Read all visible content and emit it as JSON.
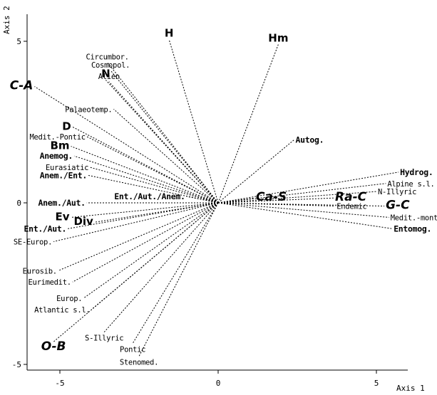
{
  "chart_data": {
    "type": "scatter",
    "title": "",
    "xlabel": "Axis 1",
    "ylabel": "Axis 2",
    "xlim": [
      -6.4,
      6.2
    ],
    "ylim": [
      -5.5,
      5.8
    ],
    "x_ticks": [
      -5,
      0,
      5
    ],
    "y_ticks": [
      -5,
      0,
      5
    ],
    "x_tick_labels": [
      "-5",
      "0",
      "5"
    ],
    "y_tick_labels": [
      "-5",
      "0",
      "5"
    ],
    "grid": false,
    "points": [
      {
        "label": "H",
        "x": -1.55,
        "y": 5.05,
        "style": "l"
      },
      {
        "label": "Hm",
        "x": 1.9,
        "y": 4.9,
        "style": "l"
      },
      {
        "label": "Circumbor.",
        "x": -3.5,
        "y": 4.35,
        "style": "s"
      },
      {
        "label": "Cosmopol.",
        "x": -3.4,
        "y": 4.1,
        "style": "s"
      },
      {
        "label": "Alien",
        "x": -3.45,
        "y": 3.75,
        "style": "s"
      },
      {
        "label": "N",
        "x": -3.55,
        "y": 3.8,
        "style": "l"
      },
      {
        "label": "C-A",
        "x": -5.8,
        "y": 3.6,
        "style": "xl"
      },
      {
        "label": "Palaeotemp.",
        "x": -3.3,
        "y": 2.9,
        "style": "s"
      },
      {
        "label": "D",
        "x": -4.6,
        "y": 2.35,
        "style": "l"
      },
      {
        "label": "Medit.-Pontic",
        "x": -4.15,
        "y": 2.05,
        "style": "s"
      },
      {
        "label": "Bm",
        "x": -4.65,
        "y": 1.75,
        "style": "l"
      },
      {
        "label": "Anemog.",
        "x": -4.55,
        "y": 1.45,
        "style": "m"
      },
      {
        "label": "Eurasiatic",
        "x": -4.05,
        "y": 1.1,
        "style": "s"
      },
      {
        "label": "Anem./Ent.",
        "x": -4.1,
        "y": 0.85,
        "style": "m"
      },
      {
        "label": "Ent./Aut./Anem.",
        "x": -1.0,
        "y": 0.2,
        "style": "m"
      },
      {
        "label": "Anem./Aut.",
        "x": -4.15,
        "y": 0.0,
        "style": "m"
      },
      {
        "label": "Ev",
        "x": -4.65,
        "y": -0.45,
        "style": "l"
      },
      {
        "label": "Div",
        "x": -3.9,
        "y": -0.6,
        "style": "l"
      },
      {
        "label": "Ent./Aut.",
        "x": -4.75,
        "y": -0.8,
        "style": "m"
      },
      {
        "label": "SE-Europ.",
        "x": -5.2,
        "y": -1.2,
        "style": "s"
      },
      {
        "label": "Eurosib.",
        "x": -5.05,
        "y": -2.1,
        "style": "s"
      },
      {
        "label": "Eurimedit.",
        "x": -4.6,
        "y": -2.45,
        "style": "s"
      },
      {
        "label": "Europ.",
        "x": -4.25,
        "y": -2.95,
        "style": "s"
      },
      {
        "label": "Atlantic s.l.",
        "x": -4.0,
        "y": -3.3,
        "style": "s"
      },
      {
        "label": "S-Illyric",
        "x": -3.6,
        "y": -4.0,
        "style": "s"
      },
      {
        "label": "O-B",
        "x": -5.2,
        "y": -4.3,
        "style": "xl"
      },
      {
        "label": "Pontic",
        "x": -2.7,
        "y": -4.35,
        "style": "s"
      },
      {
        "label": "Stenomed.",
        "x": -2.5,
        "y": -4.75,
        "style": "s"
      },
      {
        "label": "Autog.",
        "x": 2.4,
        "y": 1.95,
        "style": "m"
      },
      {
        "label": "Ca-S",
        "x": 1.15,
        "y": 0.15,
        "style": "xl"
      },
      {
        "label": "Ra-C",
        "x": 3.65,
        "y": 0.15,
        "style": "xl"
      },
      {
        "label": "Hydrog.",
        "x": 5.7,
        "y": 0.95,
        "style": "m"
      },
      {
        "label": "Alpine s.l.",
        "x": 5.3,
        "y": 0.6,
        "style": "s"
      },
      {
        "label": "N-Illyric",
        "x": 5.0,
        "y": 0.35,
        "style": "s"
      },
      {
        "label": "Endemic",
        "x": 3.7,
        "y": -0.1,
        "style": "s"
      },
      {
        "label": "G-C",
        "x": 5.25,
        "y": -0.1,
        "style": "xl"
      },
      {
        "label": "Medit.-mont.",
        "x": 5.4,
        "y": -0.45,
        "style": "s"
      },
      {
        "label": "Entomog.",
        "x": 5.5,
        "y": -0.8,
        "style": "m"
      }
    ]
  }
}
